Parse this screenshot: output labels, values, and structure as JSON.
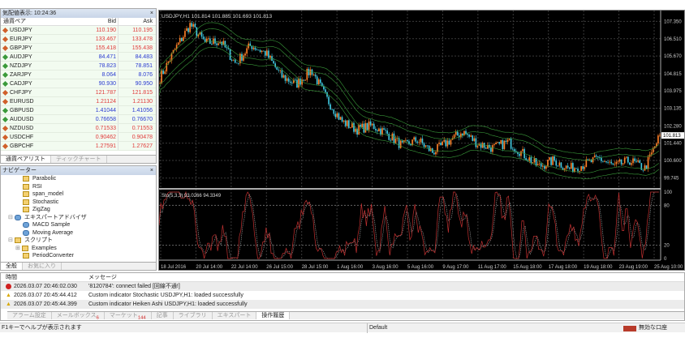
{
  "market_watch": {
    "title": "気配値表示: 10:24:36",
    "close": "×",
    "headers": [
      "通貨ペア",
      "Bid",
      "Ask"
    ],
    "rows": [
      {
        "symbol": "USDJPY",
        "bid": "110.190",
        "ask": "110.195",
        "dir": "down"
      },
      {
        "symbol": "EURJPY",
        "bid": "133.467",
        "ask": "133.478",
        "dir": "down"
      },
      {
        "symbol": "GBPJPY",
        "bid": "155.418",
        "ask": "155.438",
        "dir": "down"
      },
      {
        "symbol": "AUDJPY",
        "bid": "84.471",
        "ask": "84.483",
        "dir": "up"
      },
      {
        "symbol": "NZDJPY",
        "bid": "78.823",
        "ask": "78.851",
        "dir": "up"
      },
      {
        "symbol": "ZARJPY",
        "bid": "8.064",
        "ask": "8.076",
        "dir": "up"
      },
      {
        "symbol": "CADJPY",
        "bid": "90.930",
        "ask": "90.950",
        "dir": "up"
      },
      {
        "symbol": "CHFJPY",
        "bid": "121.787",
        "ask": "121.815",
        "dir": "down"
      },
      {
        "symbol": "EURUSD",
        "bid": "1.21124",
        "ask": "1.21130",
        "dir": "down"
      },
      {
        "symbol": "GBPUSD",
        "bid": "1.41044",
        "ask": "1.41056",
        "dir": "up"
      },
      {
        "symbol": "AUDUSD",
        "bid": "0.76658",
        "ask": "0.76670",
        "dir": "up"
      },
      {
        "symbol": "NZDUSD",
        "bid": "0.71533",
        "ask": "0.71553",
        "dir": "down"
      },
      {
        "symbol": "USDCHF",
        "bid": "0.90462",
        "ask": "0.90478",
        "dir": "down"
      },
      {
        "symbol": "GBPCHF",
        "bid": "1.27591",
        "ask": "1.27627",
        "dir": "down"
      }
    ],
    "tabs": [
      "通貨ペアリスト",
      "ティックチャート"
    ]
  },
  "navigator": {
    "title": "ナビゲーター",
    "close": "×",
    "items": [
      {
        "label": "Parabolic",
        "indent": 3,
        "type": "ind"
      },
      {
        "label": "RSI",
        "indent": 3,
        "type": "ind"
      },
      {
        "label": "span_model",
        "indent": 3,
        "type": "ind"
      },
      {
        "label": "Stochastic",
        "indent": 3,
        "type": "ind"
      },
      {
        "label": "ZigZag",
        "indent": 3,
        "type": "ind"
      },
      {
        "label": "エキスパートアドバイザ",
        "indent": 1,
        "type": "ea",
        "expander": "⊟"
      },
      {
        "label": "MACD Sample",
        "indent": 3,
        "type": "ea"
      },
      {
        "label": "Moving Average",
        "indent": 3,
        "type": "ea"
      },
      {
        "label": "スクリプト",
        "indent": 1,
        "type": "ind",
        "expander": "⊟"
      },
      {
        "label": "Examples",
        "indent": 2,
        "type": "ind",
        "expander": "⊞"
      },
      {
        "label": "PeriodConverter",
        "indent": 3,
        "type": "ind"
      }
    ],
    "tabs": [
      "全般",
      "お気に入り"
    ]
  },
  "chart": {
    "title": "USDJPY,H1  101.814 101.885 101.693 101.813",
    "current_price": "101.813",
    "price_ticks": [
      "107.350",
      "106.510",
      "105.670",
      "104.815",
      "103.975",
      "103.135",
      "102.280",
      "101.440",
      "100.600",
      "99.745"
    ],
    "price_range": [
      99.3,
      107.8
    ],
    "stoch_title": "Sto(5,3,3) 93.0266 94.3349",
    "stoch_ticks": [
      "100",
      "80",
      "20",
      "0"
    ],
    "time_ticks": [
      "18 Jul 2016",
      "20 Jul 14:00",
      "22 Jul 14:00",
      "26 Jul 15:00",
      "28 Jul 15:00",
      "1 Aug 16:00",
      "3 Aug 16:00",
      "5 Aug 16:00",
      "9 Aug 17:00",
      "11 Aug 17:00",
      "15 Aug 18:00",
      "17 Aug 18:00",
      "19 Aug 18:00",
      "23 Aug 19:00",
      "25 Aug 10:00"
    ],
    "price_path": [
      104.6,
      106.0,
      107.2,
      106.3,
      106.4,
      105.3,
      106.2,
      105.8,
      104.7,
      104.3,
      105.0,
      103.6,
      102.5,
      102.1,
      102.3,
      101.9,
      101.3,
      101.6,
      101.0,
      101.5,
      102.0,
      101.4,
      101.2,
      101.5,
      100.9,
      100.3,
      100.6,
      100.2,
      100.4,
      100.7,
      100.3,
      100.6,
      100.2,
      101.8
    ],
    "colors": {
      "bull": "#ff7f27",
      "bear": "#40c8e0",
      "bands": "#3a9a3a",
      "stoch_main": "#c03030",
      "stoch_signal": "#a0a0a0",
      "grid": "#3a3a3a"
    }
  },
  "terminal": {
    "headers": [
      "時間",
      "メッセージ"
    ],
    "rows": [
      {
        "time": "2026.03.07 20:46:02.030",
        "msg": "'8120784': connect failed [回線不通!]",
        "level": "error"
      },
      {
        "time": "2026.03.07 20:45:44.412",
        "msg": "Custom indicator Stochastic USDJPY,H1: loaded successfully",
        "level": "warn"
      },
      {
        "time": "2026.03.07 20:45:44.399",
        "msg": "Custom indicator Heiken Ashi USDJPY,H1: loaded successfully",
        "level": "warn"
      }
    ],
    "tabs": [
      {
        "label": "アラーム設定"
      },
      {
        "label": "メールボックス",
        "badge": "6"
      },
      {
        "label": "マーケット",
        "badge": "144"
      },
      {
        "label": "記事"
      },
      {
        "label": "ライブラリ"
      },
      {
        "label": "エキスパート"
      },
      {
        "label": "操作履歴",
        "active": true
      }
    ]
  },
  "status": {
    "help": "F1キーでヘルプが表示されます",
    "profile": "Default",
    "account": "無効な口座"
  }
}
